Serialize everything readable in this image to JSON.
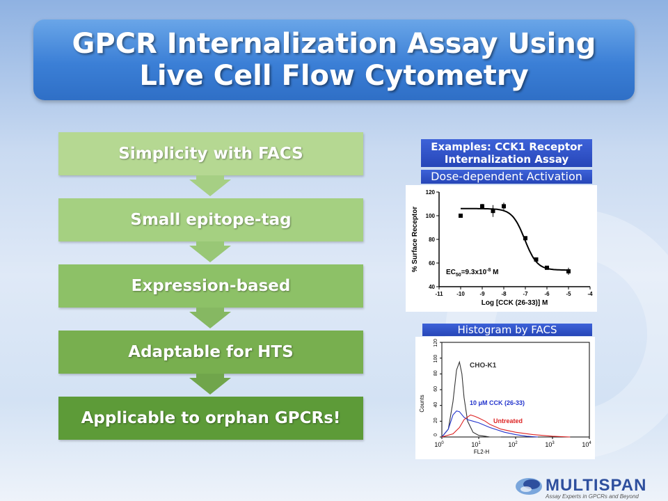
{
  "title": {
    "line1": "GPCR Internalization Assay Using",
    "line2": "Live Cell Flow Cytometry"
  },
  "steps": [
    "Simplicity with FACS",
    "Small epitope-tag",
    "Expression-based",
    "Adaptable for HTS",
    "Applicable to orphan GPCRs!"
  ],
  "colors": {
    "title_blue": "#3b7fd6",
    "step_shades": [
      "#b6d795",
      "#a6cf84",
      "#8fc06a",
      "#7aae53",
      "#5f9a3c"
    ],
    "label_blue": "#2e4fc8"
  },
  "labels": {
    "examples_line1": "Examples: CCK1 Receptor",
    "examples_line2": "Internalization Assay",
    "dose": "Dose-dependent Activation",
    "histogram": "Histogram by FACS"
  },
  "chart_data": [
    {
      "type": "scatter",
      "xlabel": "Log [CCK (26-33)] M",
      "ylabel": "% Surface Receptor",
      "xlim": [
        -11,
        -4
      ],
      "ylim": [
        40,
        120
      ],
      "xticks": [
        "-11",
        "-10",
        "-9",
        "-8",
        "-7",
        "-6",
        "-5",
        "-4"
      ],
      "yticks": [
        "40",
        "60",
        "80",
        "100",
        "120"
      ],
      "x": [
        -10,
        -9,
        -8.5,
        -8,
        -7,
        -6.5,
        -6,
        -5
      ],
      "y": [
        100,
        108,
        104,
        108,
        81,
        63,
        56,
        53
      ],
      "err": [
        0,
        2,
        5,
        3,
        0,
        0,
        0,
        3
      ],
      "fit": {
        "top": 106,
        "bottom": 54,
        "logEC50": -7.03
      },
      "annotation": {
        "prefix": "EC",
        "sub": "50",
        "mid": "=9.3x10",
        "sup": "-8",
        "suffix": " M"
      }
    },
    {
      "type": "line",
      "xlabel": "FL2-H",
      "ylabel": "Counts",
      "xscale": "log",
      "xlim": [
        1,
        10000
      ],
      "ylim": [
        0,
        120
      ],
      "yticks": [
        "0",
        "20",
        "40",
        "60",
        "80",
        "100",
        "120"
      ],
      "xticks": [
        {
          "base": "10",
          "exp": "0"
        },
        {
          "base": "10",
          "exp": "1"
        },
        {
          "base": "10",
          "exp": "2"
        },
        {
          "base": "10",
          "exp": "3"
        },
        {
          "base": "10",
          "exp": "4"
        }
      ],
      "series": [
        {
          "name": "CHO-K1",
          "color": "#333333",
          "x": [
            1,
            1.5,
            2,
            2.5,
            3,
            3.5,
            4,
            5,
            7,
            10,
            15,
            20,
            40
          ],
          "y": [
            0,
            10,
            45,
            85,
            95,
            80,
            50,
            20,
            6,
            2,
            1,
            0,
            0
          ]
        },
        {
          "name": "10 μM CCK (26-33)",
          "color": "#2233cc",
          "x": [
            1,
            1.5,
            2,
            2.5,
            3,
            4,
            5,
            7,
            10,
            20,
            50,
            100,
            200,
            400
          ],
          "y": [
            0,
            10,
            28,
            33,
            32,
            25,
            22,
            20,
            18,
            12,
            6,
            3,
            1,
            0
          ]
        },
        {
          "name": "Untreated",
          "color": "#dd2222",
          "x": [
            1,
            2,
            3,
            4,
            6,
            8,
            10,
            15,
            20,
            40,
            100,
            300,
            1000,
            3000
          ],
          "y": [
            0,
            4,
            12,
            22,
            28,
            26,
            24,
            20,
            16,
            10,
            6,
            3,
            1,
            0
          ]
        }
      ]
    }
  ],
  "logo": {
    "name": "MULTISPAN",
    "tagline": "Assay Experts in GPCRs and Beyond"
  }
}
